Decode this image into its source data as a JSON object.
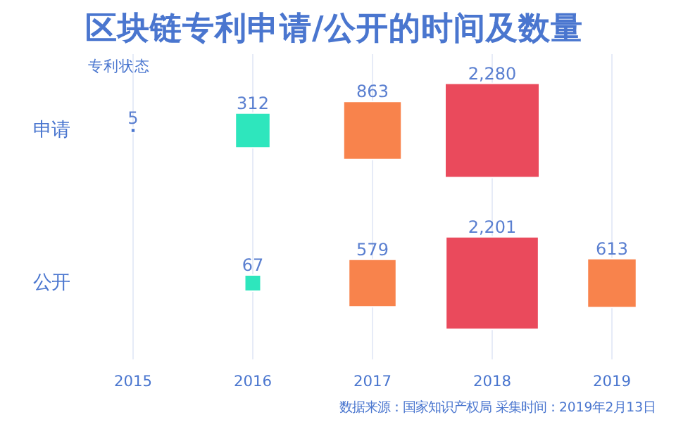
{
  "chart_data": {
    "type": "heatmap",
    "title": "区块链专利申请/公开的时间及数量",
    "ylabel": "专利状态",
    "categories": [
      "2015",
      "2016",
      "2017",
      "2018",
      "2019"
    ],
    "y_categories": [
      "申请",
      "公开"
    ],
    "cells": [
      [
        5,
        312,
        863,
        2280,
        null
      ],
      [
        null,
        67,
        579,
        2201,
        613
      ]
    ],
    "cell_labels": [
      [
        "5",
        "312",
        "863",
        "2,280",
        null
      ],
      [
        null,
        "67",
        "579",
        "2,201",
        "613"
      ]
    ],
    "colors": [
      [
        "#4a76cf",
        "#2ee6bd",
        "#f8834c",
        "#ea4a5c",
        "#f8834c"
      ],
      [
        "#4a76cf",
        "#2ee6bd",
        "#f8834c",
        "#ea4a5c",
        "#f8834c"
      ]
    ],
    "grid": "x",
    "annotations": [
      "数据来源：国家知识产权局  采集时间：2019年2月13日"
    ]
  }
}
